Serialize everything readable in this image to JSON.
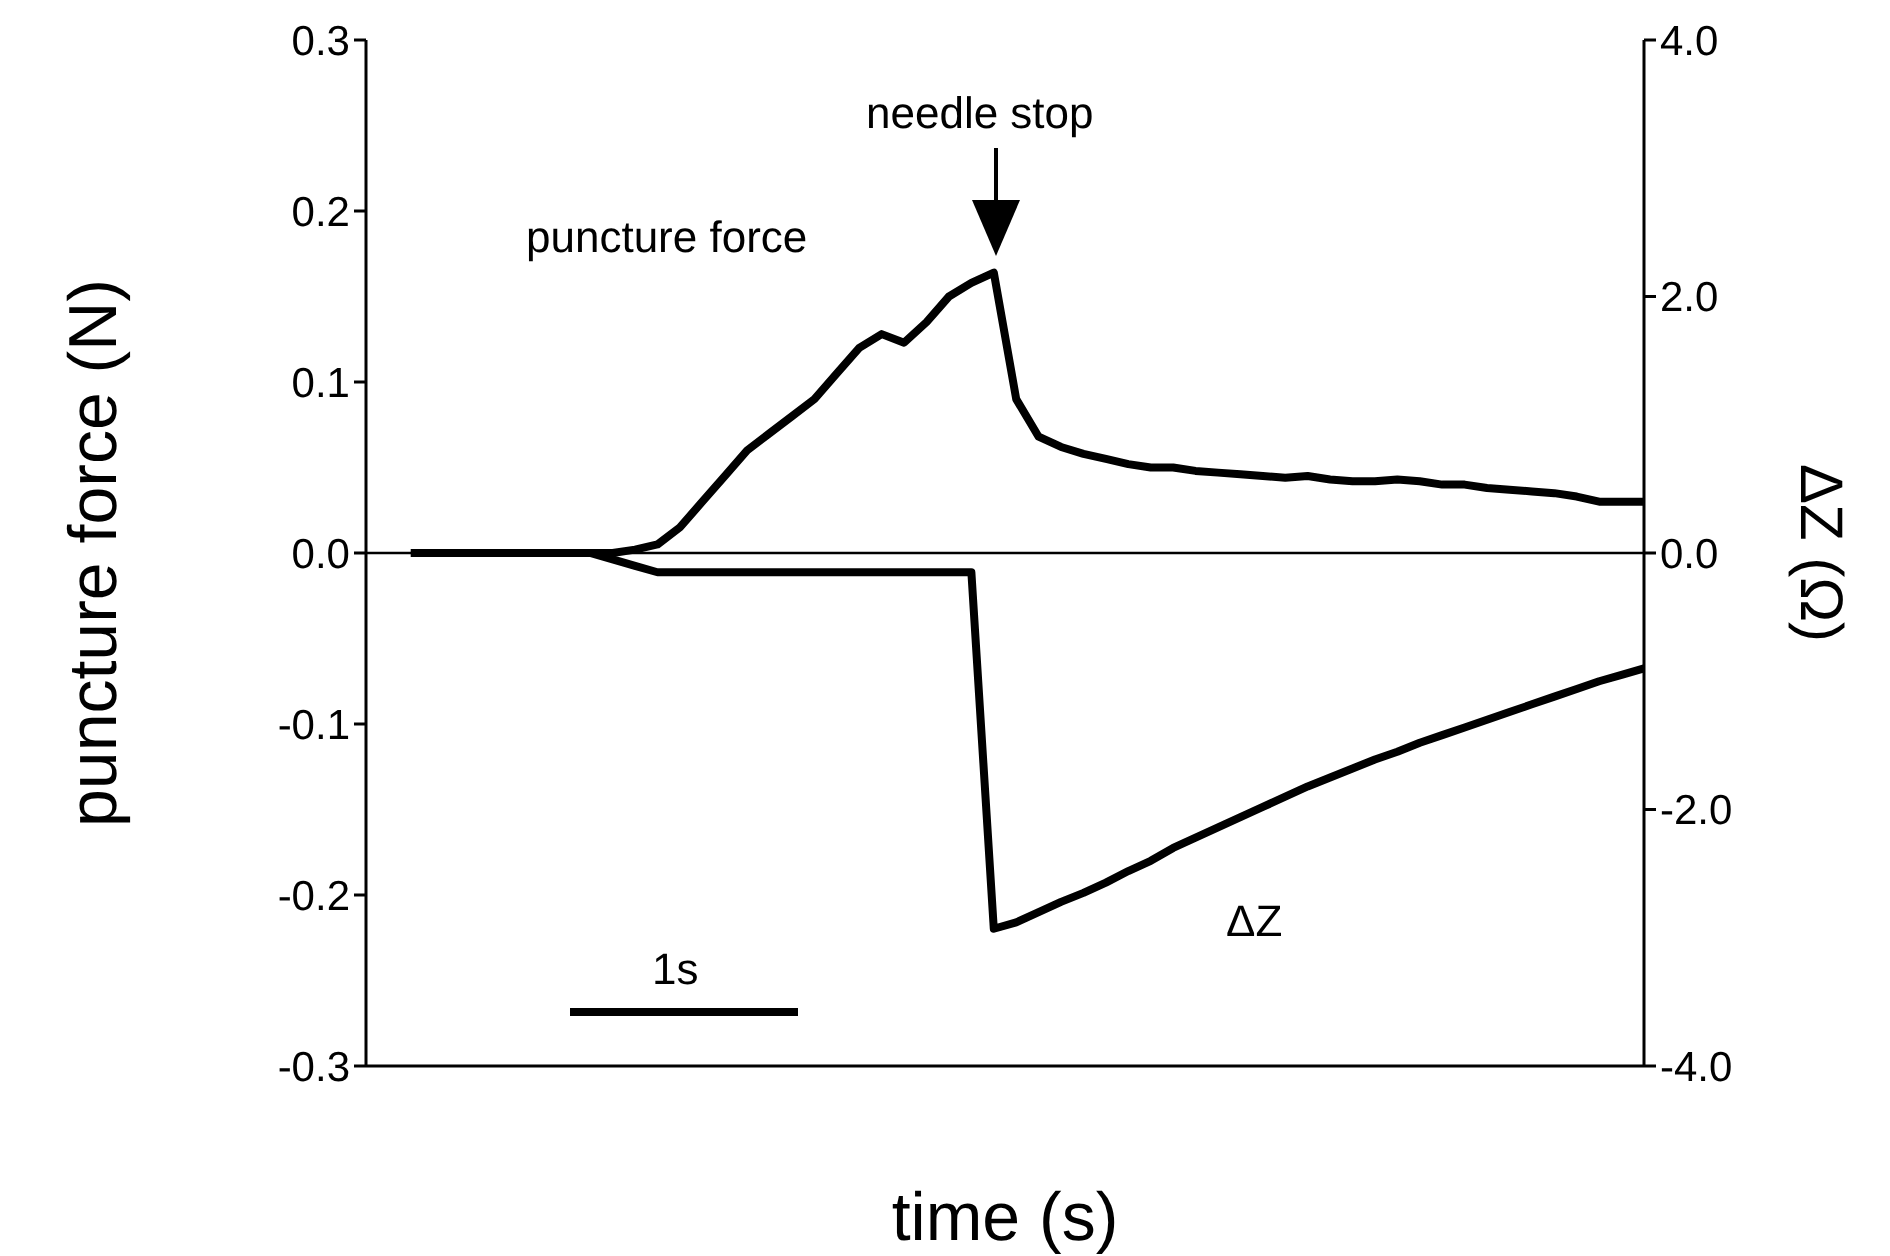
{
  "chart_data": {
    "type": "line",
    "xlabel": "time (s)",
    "ylabel": "puncture force (N)",
    "y2label": "ΔZ (Ω)",
    "categories": [
      null,
      null,
      null,
      null,
      null,
      null,
      null,
      null,
      null,
      null,
      null,
      null,
      null,
      null,
      null,
      null,
      null,
      null,
      null,
      null,
      null,
      null,
      null,
      null,
      null,
      null,
      null,
      null,
      null,
      null,
      null,
      null,
      null,
      null,
      null,
      null,
      null,
      null,
      null,
      null,
      null,
      null,
      null,
      null,
      null,
      null,
      null,
      null,
      null,
      null,
      null,
      null,
      null,
      null,
      null,
      null,
      null,
      null
    ],
    "series": [
      {
        "name": "puncture force",
        "color": "#000000",
        "values": [
          null,
          null,
          0,
          0,
          0,
          0,
          0,
          0,
          0,
          0,
          0,
          0,
          0.002,
          0.005,
          0.015,
          0.03,
          0.045,
          0.06,
          0.07,
          0.08,
          0.09,
          0.105,
          0.12,
          0.128,
          0.123,
          0.135,
          0.15,
          0.158,
          0.164,
          0.09,
          0.068,
          0.062,
          0.058,
          0.055,
          0.052,
          0.05,
          0.05,
          0.048,
          0.047,
          0.046,
          0.045,
          0.044,
          0.045,
          0.043,
          0.042,
          0.042,
          0.043,
          0.042,
          0.04,
          0.04,
          0.038,
          0.037,
          0.036,
          0.035,
          0.033,
          0.03,
          0.03,
          0.03
        ]
      },
      {
        "name": "ΔZ",
        "color": "#000000",
        "axis": "y2",
        "values": [
          null,
          null,
          0,
          0,
          0,
          0,
          0,
          0,
          0,
          0,
          0,
          -0.05,
          -0.1,
          -0.15,
          -0.15,
          -0.15,
          -0.15,
          -0.15,
          -0.15,
          -0.15,
          -0.15,
          -0.15,
          -0.15,
          -0.15,
          -0.15,
          -0.15,
          -0.15,
          -0.15,
          -2.93,
          -2.88,
          -2.8,
          -2.72,
          -2.65,
          -2.57,
          -2.48,
          -2.4,
          -2.3,
          -2.22,
          -2.14,
          -2.06,
          -1.98,
          -1.9,
          -1.82,
          -1.75,
          -1.68,
          -1.61,
          -1.55,
          -1.48,
          -1.42,
          -1.36,
          -1.3,
          -1.24,
          -1.18,
          -1.12,
          -1.06,
          -1.0,
          -0.95,
          -0.9
        ]
      }
    ],
    "ylim": [
      -0.3,
      0.3
    ],
    "yticks": [
      {
        "value": -0.3,
        "label": "-0.3"
      },
      {
        "value": -0.2,
        "label": "-0.2"
      },
      {
        "value": -0.1,
        "label": "-0.1"
      },
      {
        "value": 0,
        "label": "0.0"
      },
      {
        "value": 0.1,
        "label": "0.1"
      },
      {
        "value": 0.2,
        "label": "0.2"
      },
      {
        "value": 0.3,
        "label": "0.3"
      }
    ],
    "y2lim": [
      -4,
      4
    ],
    "y2ticks": [
      {
        "value": -4,
        "label": "-4.0"
      },
      {
        "value": -2,
        "label": "-2.0"
      },
      {
        "value": 0,
        "label": "0.0"
      },
      {
        "value": 2,
        "label": "2.0"
      },
      {
        "value": 4,
        "label": "4.0"
      }
    ],
    "ref_lines": [
      {
        "axis": "y",
        "value": 0,
        "color": "#000000"
      }
    ],
    "annotations": [
      "needle stop",
      "1s"
    ],
    "tick_labels": "y",
    "grid": false,
    "legend": false,
    "marker": "none",
    "line_style": "solid"
  }
}
